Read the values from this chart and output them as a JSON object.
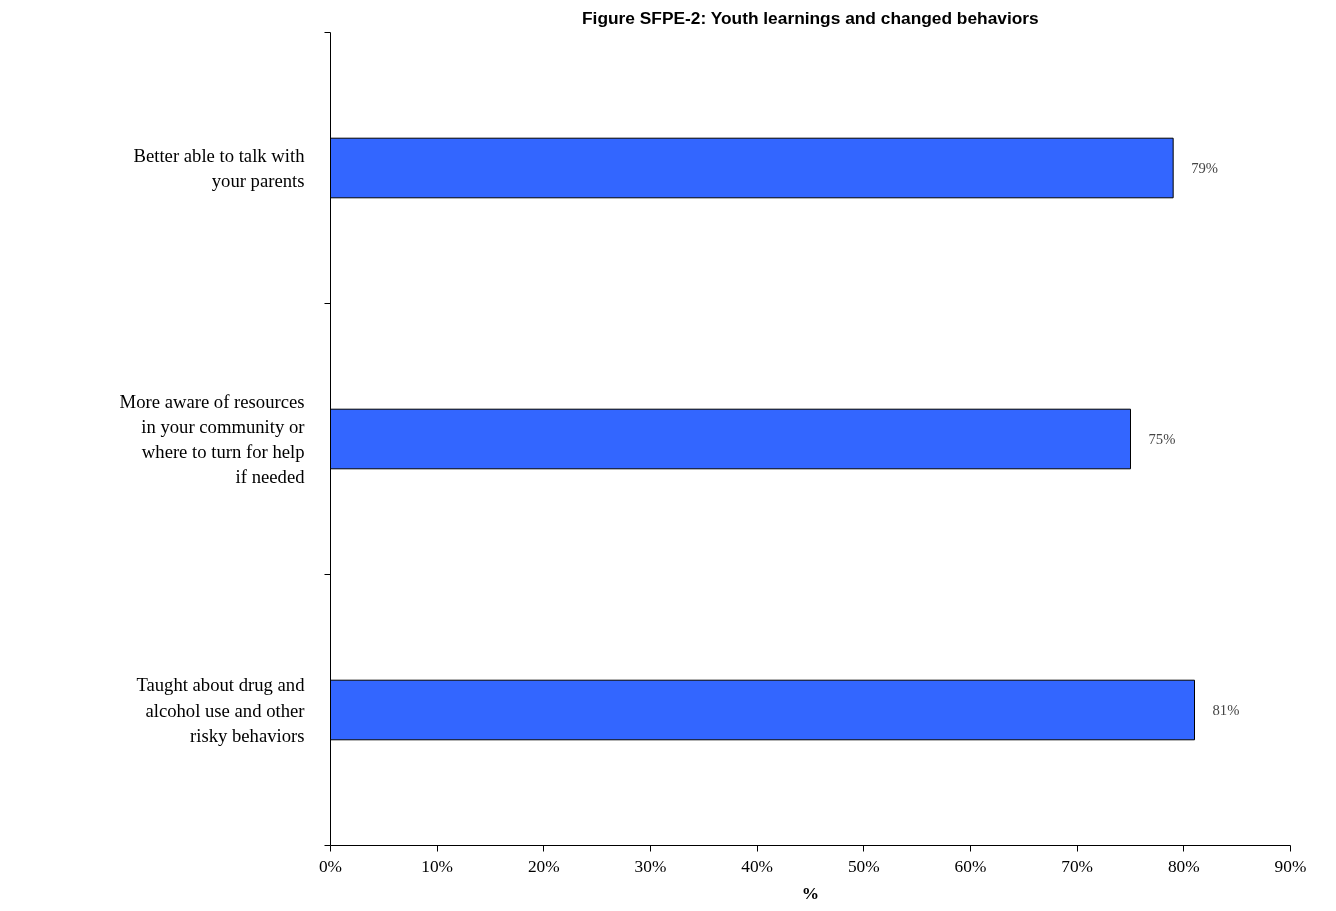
{
  "chart_data": {
    "type": "bar",
    "orientation": "horizontal",
    "title": "Figure SFPE-2: Youth learnings and changed behaviors",
    "xlabel": "%",
    "categories": [
      "Better able to talk with your parents",
      "More aware of resources in your community or where to turn for help if needed",
      "Taught about drug and alcohol use and other risky behaviors"
    ],
    "values": [
      79,
      75,
      81
    ],
    "value_labels": [
      "79%",
      "75%",
      "81%"
    ],
    "color": "#3366ff",
    "xlim": [
      0,
      90
    ],
    "xticks": [
      {
        "value": 0,
        "label": "0%"
      },
      {
        "value": 10,
        "label": "10%"
      },
      {
        "value": 20,
        "label": "20%"
      },
      {
        "value": 30,
        "label": "30%"
      },
      {
        "value": 40,
        "label": "40%"
      },
      {
        "value": 50,
        "label": "50%"
      },
      {
        "value": 60,
        "label": "60%"
      },
      {
        "value": 70,
        "label": "70%"
      },
      {
        "value": 80,
        "label": "80%"
      },
      {
        "value": 90,
        "label": "90%"
      }
    ],
    "grid": false
  }
}
